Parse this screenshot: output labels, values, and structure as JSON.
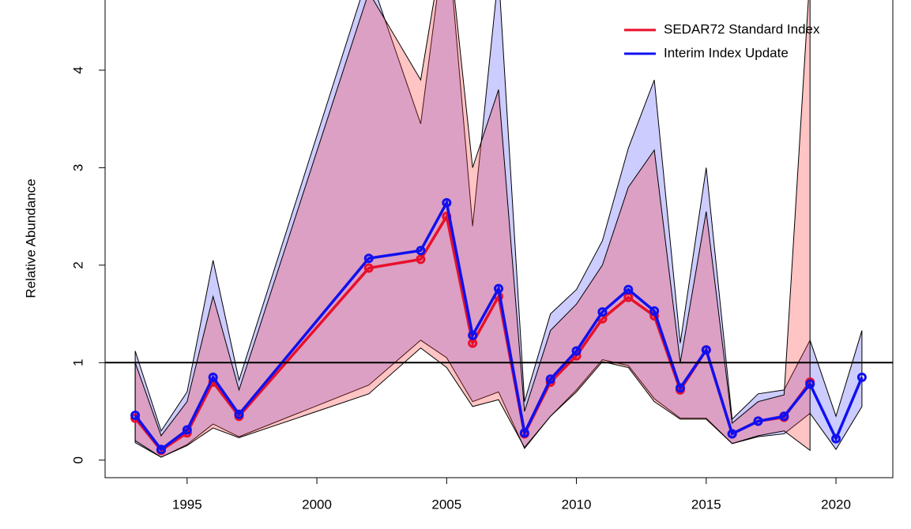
{
  "chart_data": {
    "type": "line",
    "y_label": "Relative Abundance",
    "x": [
      1993,
      1994,
      1995,
      1996,
      1997,
      2002,
      2004,
      2005,
      2006,
      2007,
      2008,
      2009,
      2010,
      2011,
      2012,
      2013,
      2014,
      2015,
      2016,
      2017,
      2018,
      2019,
      2020,
      2021
    ],
    "series": [
      {
        "name": "SEDAR72 Standard Index",
        "color": "#e8102a",
        "band_color": "rgba(255,60,60,0.3)",
        "values": [
          0.43,
          0.1,
          0.28,
          0.8,
          0.45,
          1.97,
          2.06,
          2.5,
          1.2,
          1.68,
          0.27,
          0.8,
          1.07,
          1.45,
          1.67,
          1.48,
          0.72,
          1.13,
          0.27,
          0.4,
          0.44,
          0.8,
          null,
          null
        ],
        "upper": [
          1.0,
          0.25,
          0.6,
          1.68,
          0.72,
          4.8,
          3.9,
          5.5,
          3.0,
          3.8,
          0.5,
          1.33,
          1.6,
          2.0,
          2.8,
          3.18,
          1.0,
          2.55,
          0.38,
          0.6,
          0.67,
          5.0,
          null,
          null
        ],
        "lower": [
          0.2,
          0.03,
          0.15,
          0.33,
          0.23,
          0.68,
          1.15,
          0.95,
          0.55,
          0.62,
          0.13,
          0.45,
          0.7,
          1.01,
          0.95,
          0.6,
          0.42,
          0.42,
          0.17,
          0.25,
          0.3,
          0.1,
          null,
          null
        ]
      },
      {
        "name": "Interim Index Update",
        "color": "#1010f0",
        "band_color": "#ccccff",
        "values": [
          0.46,
          0.11,
          0.31,
          0.85,
          0.47,
          2.07,
          2.15,
          2.64,
          1.28,
          1.76,
          0.28,
          0.83,
          1.12,
          1.52,
          1.75,
          1.53,
          0.74,
          1.13,
          0.27,
          0.4,
          0.45,
          0.78,
          0.22,
          0.85
        ],
        "upper": [
          1.12,
          0.3,
          0.7,
          2.05,
          0.82,
          5.0,
          3.45,
          5.5,
          2.4,
          5.0,
          0.6,
          1.5,
          1.75,
          2.25,
          3.2,
          3.9,
          1.2,
          3.0,
          0.42,
          0.68,
          0.72,
          1.23,
          0.45,
          1.33
        ],
        "lower": [
          0.18,
          0.03,
          0.16,
          0.37,
          0.24,
          0.77,
          1.23,
          1.05,
          0.6,
          0.7,
          0.12,
          0.45,
          0.72,
          1.03,
          0.97,
          0.63,
          0.43,
          0.43,
          0.17,
          0.24,
          0.27,
          0.48,
          0.11,
          0.55
        ]
      }
    ],
    "hline": 1,
    "xlim": [
      1991.84,
      2022.19
    ],
    "xticks": [
      1995,
      2000,
      2005,
      2010,
      2015,
      2020
    ],
    "ylim": [
      -0.18,
      4.72
    ],
    "yticks": [
      0,
      1,
      2,
      3,
      4
    ],
    "legend": "top-right"
  }
}
